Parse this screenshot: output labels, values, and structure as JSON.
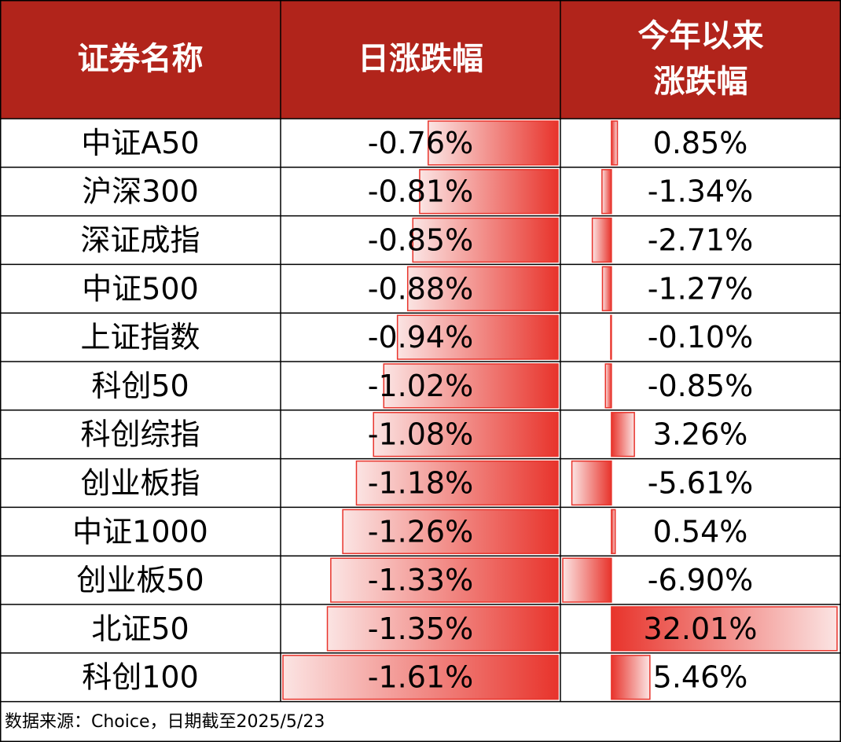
{
  "table": {
    "headers": [
      [
        "证券名称"
      ],
      [
        "日涨跌幅"
      ],
      [
        "今年以来",
        "涨跌幅"
      ]
    ],
    "rows": [
      {
        "name": "中证A50",
        "daily": {
          "value": -0.76,
          "label": "-0.76%"
        },
        "ytd": {
          "value": 0.85,
          "label": "0.85%"
        }
      },
      {
        "name": "沪深300",
        "daily": {
          "value": -0.81,
          "label": "-0.81%"
        },
        "ytd": {
          "value": -1.34,
          "label": "-1.34%"
        }
      },
      {
        "name": "深证成指",
        "daily": {
          "value": -0.85,
          "label": "-0.85%"
        },
        "ytd": {
          "value": -2.71,
          "label": "-2.71%"
        }
      },
      {
        "name": "中证500",
        "daily": {
          "value": -0.88,
          "label": "-0.88%"
        },
        "ytd": {
          "value": -1.27,
          "label": "-1.27%"
        }
      },
      {
        "name": "上证指数",
        "daily": {
          "value": -0.94,
          "label": "-0.94%"
        },
        "ytd": {
          "value": -0.1,
          "label": "-0.10%"
        }
      },
      {
        "name": "科创50",
        "daily": {
          "value": -1.02,
          "label": "-1.02%"
        },
        "ytd": {
          "value": -0.85,
          "label": "-0.85%"
        }
      },
      {
        "name": "科创综指",
        "daily": {
          "value": -1.08,
          "label": "-1.08%"
        },
        "ytd": {
          "value": 3.26,
          "label": "3.26%"
        }
      },
      {
        "name": "创业板指",
        "daily": {
          "value": -1.18,
          "label": "-1.18%"
        },
        "ytd": {
          "value": -5.61,
          "label": "-5.61%"
        }
      },
      {
        "name": "中证1000",
        "daily": {
          "value": -1.26,
          "label": "-1.26%"
        },
        "ytd": {
          "value": 0.54,
          "label": "0.54%"
        }
      },
      {
        "name": "创业板50",
        "daily": {
          "value": -1.33,
          "label": "-1.33%"
        },
        "ytd": {
          "value": -6.9,
          "label": "-6.90%"
        }
      },
      {
        "name": "北证50",
        "daily": {
          "value": -1.35,
          "label": "-1.35%"
        },
        "ytd": {
          "value": 32.01,
          "label": "32.01%"
        }
      },
      {
        "name": "科创100",
        "daily": {
          "value": -1.61,
          "label": "-1.61%"
        },
        "ytd": {
          "value": 5.46,
          "label": "5.46%"
        }
      }
    ],
    "footer": "数据来源：Choice，日期截至2025/5/23"
  }
}
